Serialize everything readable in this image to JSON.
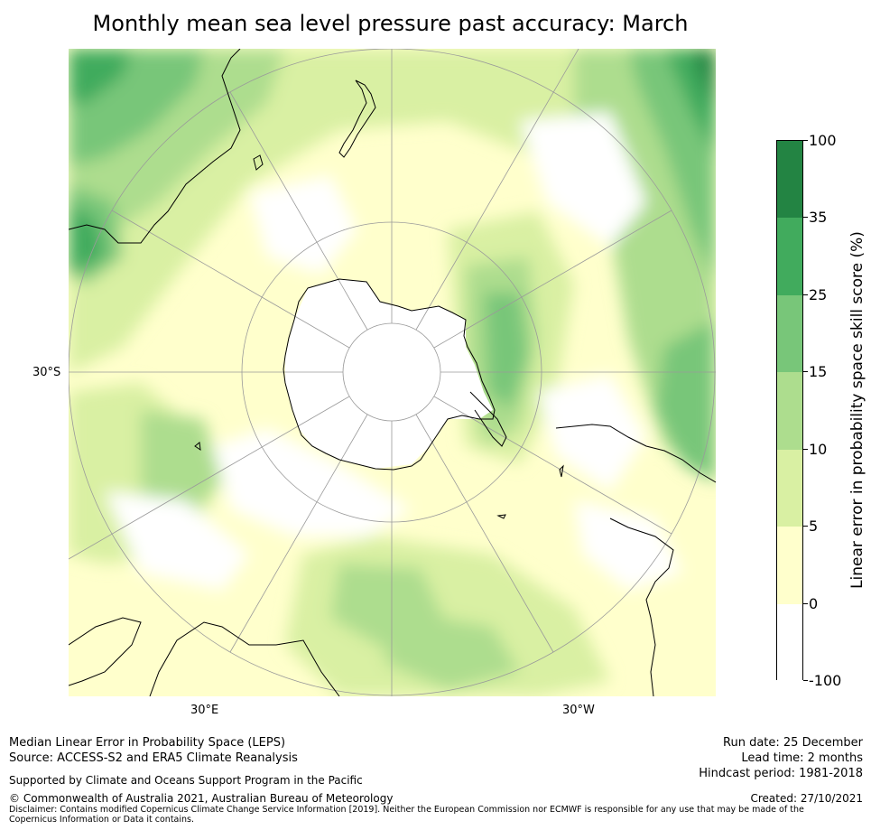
{
  "title": "Monthly mean sea level pressure past accuracy: March",
  "map": {
    "projection": "south-polar-stereographic",
    "lat_label": "30°S",
    "lon_labels": [
      "30°E",
      "30°W"
    ],
    "colors": {
      "ocean": "#ffffcc",
      "continent": "#ffffff",
      "coast": "#000000",
      "grid": "#9a9a9a"
    }
  },
  "colorbar": {
    "title": "Linear error in probability space skill score (%)",
    "ticks": [
      "100",
      "35",
      "25",
      "15",
      "10",
      "5",
      "0",
      "-100"
    ],
    "bins": [
      {
        "range": "35 to 100",
        "color": "#238443"
      },
      {
        "range": "25 to 35",
        "color": "#41ab5d"
      },
      {
        "range": "15 to 25",
        "color": "#78c679"
      },
      {
        "range": "10 to 15",
        "color": "#addd8e"
      },
      {
        "range": "5 to 10",
        "color": "#d9f0a3"
      },
      {
        "range": "0 to 5",
        "color": "#ffffcc"
      },
      {
        "range": "-100 to 0",
        "color": "#ffffff"
      }
    ]
  },
  "footer": {
    "left_line1": "Median Linear Error in Probability Space (LEPS)",
    "left_line2": "Source: ACCESS-S2 and ERA5 Climate Reanalysis",
    "support": "Supported by Climate and Oceans Support Program in the Pacific",
    "copyright": "© Commonwealth of Australia 2021, Australian Bureau of Meteorology",
    "disclaimer": "Disclaimer: Contains modified Copernicus Climate Change Service Information [2019]. Neither the European Commission nor ECMWF is responsible for any use that may be made of the Copernicus Information or Data it contains.",
    "run_date": "Run date: 25 December",
    "lead_time": "Lead time: 2 months",
    "hindcast": "Hindcast period: 1981-2018",
    "created": "Created: 27/10/2021"
  }
}
